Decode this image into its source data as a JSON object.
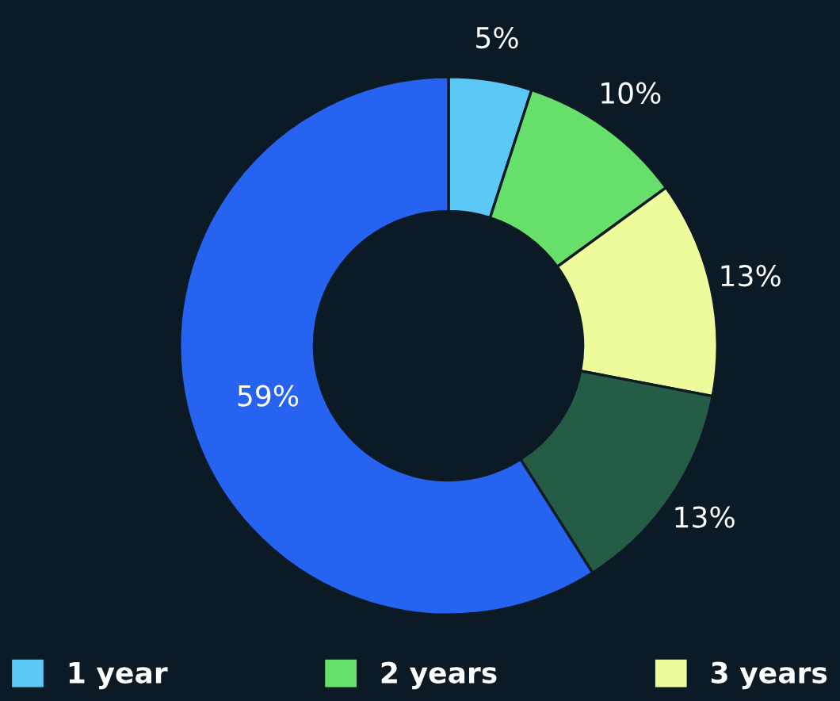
{
  "chart_data": {
    "type": "donut",
    "categories": [
      "1 year",
      "2 years",
      "3 years",
      null,
      null
    ],
    "values": [
      5,
      10,
      13,
      13,
      59
    ],
    "colors": [
      "#5bc8f5",
      "#66e06a",
      "#eefc9c",
      "#245c45",
      "#2563f0"
    ],
    "value_labels": [
      "5%",
      "10%",
      "13%",
      "13%",
      "59%"
    ],
    "legend": "bottom"
  }
}
